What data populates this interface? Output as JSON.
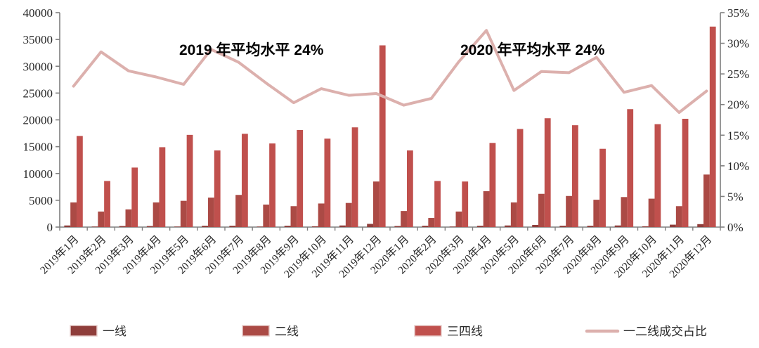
{
  "chart_data": {
    "type": "bar+line combo",
    "categories": [
      "2019年1月",
      "2019年2月",
      "2019年3月",
      "2019年4月",
      "2019年5月",
      "2019年6月",
      "2019年7月",
      "2019年8月",
      "2019年9月",
      "2019年10月",
      "2019年11月",
      "2019年12月",
      "2020年1月",
      "2020年2月",
      "2020年3月",
      "2020年4月",
      "2020年5月",
      "2020年6月",
      "2020年7月",
      "2020年8月",
      "2020年9月",
      "2020年10月",
      "2020年11月",
      "2020年12月"
    ],
    "series": [
      {
        "name": "一线",
        "type": "bar",
        "axis": "left",
        "color": "#8f3e3b",
        "values": [
          300,
          100,
          200,
          200,
          100,
          250,
          250,
          100,
          250,
          150,
          300,
          600,
          200,
          250,
          100,
          250,
          300,
          400,
          250,
          250,
          300,
          150,
          450,
          550
        ]
      },
      {
        "name": "二线",
        "type": "bar",
        "axis": "left",
        "color": "#ab4a45",
        "values": [
          4600,
          2900,
          3300,
          4600,
          4900,
          5500,
          6000,
          4200,
          3900,
          4400,
          4500,
          8500,
          3000,
          1700,
          2900,
          6700,
          4600,
          6200,
          5800,
          5100,
          5600,
          5300,
          3900,
          9800
        ]
      },
      {
        "name": "三四线",
        "type": "bar",
        "axis": "left",
        "color": "#c0504d",
        "values": [
          17000,
          8600,
          11100,
          14900,
          17200,
          14300,
          17400,
          15600,
          18100,
          16500,
          18600,
          33900,
          14300,
          8600,
          8500,
          15700,
          18300,
          20300,
          19000,
          14600,
          22000,
          19200,
          20200,
          37400
        ]
      },
      {
        "name": "一二线成交占比",
        "type": "line",
        "axis": "right",
        "color": "#dcb0ad",
        "values": [
          23.0,
          28.6,
          25.5,
          24.5,
          23.3,
          29.0,
          26.9,
          23.5,
          20.3,
          22.6,
          21.5,
          21.8,
          19.9,
          21.0,
          27.0,
          32.1,
          22.3,
          25.4,
          25.2,
          27.7,
          22.0,
          23.1,
          18.7,
          22.2
        ]
      }
    ],
    "left_axis": {
      "min": 0,
      "max": 40000,
      "step": 5000,
      "tick_labels": [
        "0",
        "5000",
        "10000",
        "15000",
        "20000",
        "25000",
        "30000",
        "35000",
        "40000"
      ]
    },
    "right_axis": {
      "min": 0,
      "max": 35,
      "step": 5,
      "tick_labels": [
        "0%",
        "5%",
        "10%",
        "15%",
        "20%",
        "25%",
        "30%",
        "35%"
      ]
    },
    "annotations": [
      {
        "text": "2019 年平均水平 24%",
        "x": 255,
        "y": 78
      },
      {
        "text": "2020 年平均水平 24%",
        "x": 655,
        "y": 78
      }
    ],
    "legend_position": "bottom",
    "grid": false,
    "title": "",
    "xlabel": "",
    "ylabel": ""
  },
  "colors": {
    "axis_line": "#7f7f7f",
    "tick_text": "#262626",
    "annotation_text": "#000000",
    "background": "#ffffff",
    "legend_swatch_border": "#e9cfcd"
  }
}
